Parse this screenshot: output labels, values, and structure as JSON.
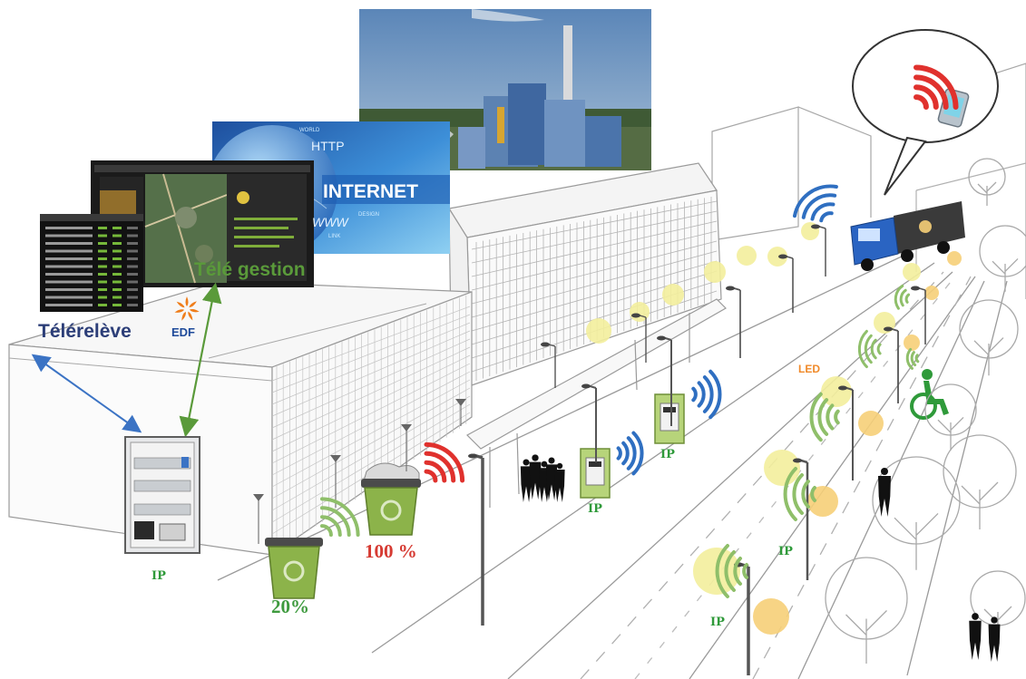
{
  "labels": {
    "internet": "INTERNET",
    "http": "HTTP",
    "www": "WWW",
    "design": "DESIGN",
    "link": "LINK",
    "world": "WORLD",
    "telegestion": "Télé gestion",
    "telereleve": "Télérelève",
    "edf": "EDF",
    "led": "LED",
    "ip_cabinet": "IP",
    "ip_meter_left": "IP",
    "ip_meter_right": "IP",
    "ip_street_mid": "IP",
    "ip_street_low": "IP",
    "bin_empty_pct": "20%",
    "bin_full_pct": "100 %"
  },
  "colors": {
    "sketch_line": "#9a9a9a",
    "lamp_yellow": "#f3ee9c",
    "lamp_orange": "#f6cf78",
    "wifi_green": "#8fbf6a",
    "wifi_red": "#e0312d",
    "wifi_blue": "#2f6fc1",
    "bin_green": "#8cb34a",
    "ip_green": "#2f9a3a",
    "telereleve_blue": "#2c3e78",
    "telegestion_green": "#5a9a3a",
    "edf_orange": "#ef7d1a",
    "led_orange": "#f08a2a",
    "pct_20_green": "#3e9a3e",
    "pct_100_red": "#d63a32",
    "arrow_blue": "#3b73c4",
    "arrow_green": "#5a9a3a"
  },
  "icons": [
    "server-screen",
    "map-dashboard",
    "internet-banner",
    "factory-photo",
    "electrical-cabinet",
    "waste-bin",
    "smart-meter",
    "street-lamp",
    "wifi-signal",
    "dump-truck",
    "pda-device",
    "wheelchair-icon",
    "pedestrian-silhouette",
    "tree"
  ]
}
